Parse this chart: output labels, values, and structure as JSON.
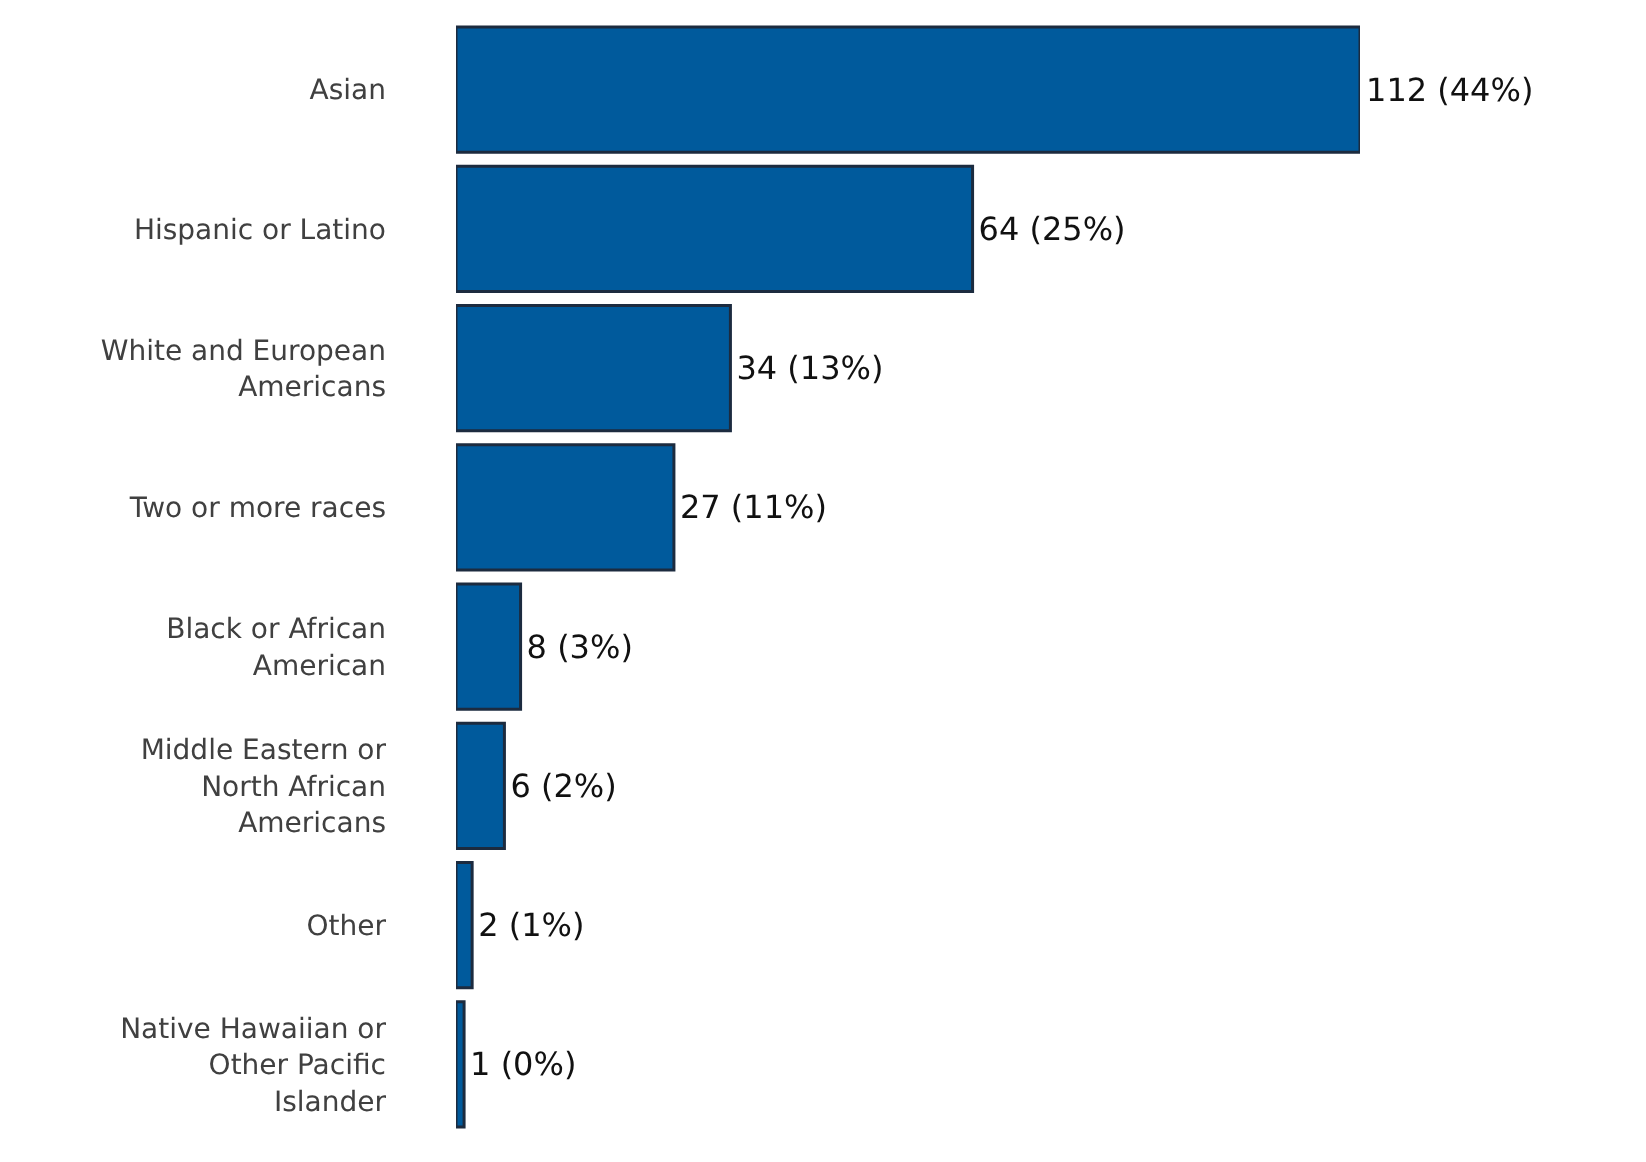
{
  "chart_data": {
    "type": "bar",
    "orientation": "horizontal",
    "categories": [
      "Asian",
      "Hispanic or Latino",
      "White and European Americans",
      "Two or more races",
      "Black or African American",
      "Middle Eastern or North African Americans",
      "Other",
      "Native Hawaiian or Other Pacific Islander"
    ],
    "values": [
      112,
      64,
      34,
      27,
      8,
      6,
      2,
      1
    ],
    "value_labels": [
      "112 (44%)",
      "64 (25%)",
      "34 (13%)",
      "27 (11%)",
      "8 (3%)",
      "6 (2%)",
      "2 (1%)",
      "1 (0%)"
    ],
    "color": "#005a9c"
  }
}
